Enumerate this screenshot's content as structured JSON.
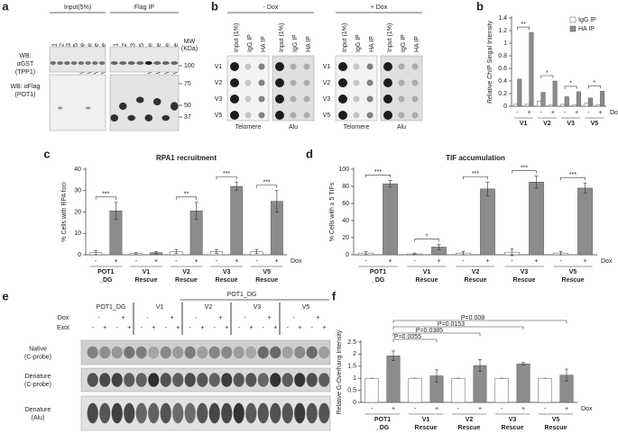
{
  "chart_data": [
    {
      "type": "bar",
      "panel": "b",
      "y_label": "Relative ChIP Singal Intensity",
      "x_label": "Dox",
      "categories": [
        "-",
        "+",
        "-",
        "+",
        "-",
        "+",
        "-",
        "+"
      ],
      "groups": [
        [
          "V1"
        ],
        [
          "V2"
        ],
        [
          "V3"
        ],
        [
          "V5"
        ]
      ],
      "series": [
        {
          "name": "IgG IP",
          "color": "#ffffff",
          "values": [
            0.03,
            0.03,
            0.08,
            0.02,
            0.03,
            0.02,
            0.05,
            0.02
          ]
        },
        {
          "name": "HA IP",
          "color": "#8c8c8c",
          "values": [
            0.43,
            1.17,
            0.22,
            0.4,
            0.15,
            0.23,
            0.13,
            0.24
          ]
        }
      ],
      "significance": [
        "**",
        "*",
        "*",
        "*"
      ],
      "ylim": [
        0,
        1.4
      ],
      "yticks": [
        0,
        0.2,
        0.4,
        0.6,
        0.8,
        1,
        1.2,
        1.4
      ],
      "legend": "top-right"
    },
    {
      "type": "bar",
      "panel": "c",
      "title": "RPA1 recruitment",
      "y_label": "% Cells with RPA foci",
      "x_label": "Dox",
      "categories": [
        "-",
        "+",
        "-",
        "+",
        "-",
        "+",
        "-",
        "+",
        "-",
        "+"
      ],
      "groups": [
        [
          "POT1",
          "_DG"
        ],
        [
          "V1",
          "Rescue"
        ],
        [
          "V2",
          "Rescue"
        ],
        [
          "V3",
          "Rescue"
        ],
        [
          "V5",
          "Rescue"
        ]
      ],
      "values": [
        1,
        20.5,
        0.5,
        1,
        1.5,
        20.5,
        1.5,
        32,
        1.5,
        25
      ],
      "errors": [
        1,
        4,
        0.5,
        0.5,
        1,
        4,
        1,
        2,
        1,
        5
      ],
      "bar_colors": [
        "#ffffff",
        "#8c8c8c"
      ],
      "significance": [
        "***",
        null,
        "**",
        "***",
        "***"
      ],
      "ylim": [
        0,
        40
      ],
      "yticks": [
        0,
        10,
        20,
        30,
        40
      ]
    },
    {
      "type": "bar",
      "panel": "d",
      "title": "TIF accumulation",
      "y_label": "% Cells with ≥ 5 TIFs",
      "x_label": "Dox",
      "categories": [
        "-",
        "+",
        "-",
        "+",
        "-",
        "+",
        "-",
        "+",
        "-",
        "+"
      ],
      "groups": [
        [
          "POT1",
          "_DG"
        ],
        [
          "V1",
          "Rescue"
        ],
        [
          "V2",
          "Rescue"
        ],
        [
          "V3",
          "Rescue"
        ],
        [
          "V5",
          "Rescue"
        ]
      ],
      "values": [
        2,
        83,
        1,
        9,
        2,
        77,
        3,
        85,
        2,
        78
      ],
      "errors": [
        2,
        4,
        1,
        3,
        2,
        8,
        4,
        7,
        2,
        6
      ],
      "bar_colors": [
        "#ffffff",
        "#8c8c8c"
      ],
      "significance": [
        "***",
        "*",
        "***",
        "***",
        "***"
      ],
      "ylim": [
        0,
        100
      ],
      "yticks": [
        0,
        20,
        40,
        60,
        80,
        100
      ]
    },
    {
      "type": "bar",
      "panel": "f",
      "y_label": "Relative G-Overhang Intensity",
      "x_label": "Dox",
      "categories": [
        "-",
        "+",
        "-",
        "+",
        "-",
        "+",
        "-",
        "+",
        "-",
        "+"
      ],
      "groups": [
        [
          "POT1",
          "_DG"
        ],
        [
          "V1",
          "Rescue"
        ],
        [
          "V2",
          "Rescue"
        ],
        [
          "V3",
          "Rescue"
        ],
        [
          "V5",
          "Rescue"
        ]
      ],
      "values": [
        1,
        1.93,
        1,
        1.1,
        1,
        1.53,
        1,
        1.6,
        1,
        1.13
      ],
      "errors": [
        0,
        0.2,
        0,
        0.25,
        0,
        0.25,
        0,
        0.05,
        0,
        0.25
      ],
      "bar_colors": [
        "#ffffff",
        "#8c8c8c"
      ],
      "pvalues": [
        "P=0.0055",
        "P=0.0385",
        "P=0.0153",
        "P=0.008"
      ],
      "ylim": [
        0,
        2.5
      ],
      "yticks": [
        0,
        0.5,
        1,
        1.5,
        2,
        2.5
      ]
    }
  ],
  "figure": {
    "a": {
      "panel": "a",
      "input_header": "Input(5%)",
      "ip_header": "Flag IP",
      "lanes": [
        "wt V1",
        "wt V2",
        "wt V3",
        "wt V5",
        "V1 Rescue",
        "V2 Rescue",
        "V3 Rescue",
        "V5 Rescue"
      ],
      "mw": [
        "MW",
        "(KDa)"
      ],
      "markers": [
        "100",
        "75",
        "50",
        "37"
      ],
      "rows": [
        [
          "WB:",
          "αGST",
          "(TPP1)"
        ],
        [
          "WB: αFlag",
          "(POT1)"
        ]
      ]
    },
    "b": {
      "panel": "b",
      "minus": "- Dox",
      "plus": "+ Dox",
      "columns": [
        "Input (1%)",
        "IgG IP",
        "HA IP"
      ],
      "rows": [
        "V1",
        "V2",
        "V3",
        "V5"
      ],
      "probes": [
        "Telomere",
        "Alu"
      ]
    },
    "e": {
      "panel": "e",
      "top": "POT1_DG",
      "groups": [
        "POT1_DG",
        "V1",
        "V2",
        "V3",
        "V5"
      ],
      "dox_label": "Dox",
      "dox": [
        "-",
        "+"
      ],
      "exo_label": "ExoI",
      "exo": [
        "-",
        "+",
        "-",
        "+"
      ],
      "rows": [
        [
          "Native",
          "(C-probe)"
        ],
        [
          "Denature",
          "(C-probe)"
        ],
        [
          "Denature",
          "(Alu)"
        ]
      ]
    }
  }
}
